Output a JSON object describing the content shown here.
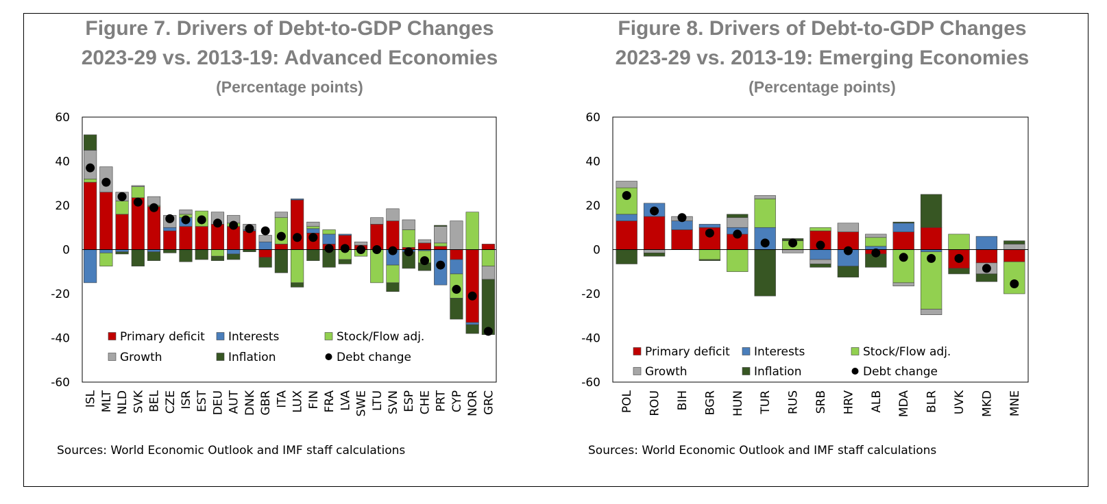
{
  "colors": {
    "primary_deficit": "#c00000",
    "interests": "#4a7ebb",
    "stock_flow": "#92d050",
    "growth": "#a6a6a6",
    "inflation": "#375623",
    "debt_change": "#000000",
    "title": "#7f7f7f"
  },
  "chart_data": [
    {
      "type": "bar",
      "subtype": "stacked",
      "title": "Figure 7. Drivers of Debt-to-GDP Changes",
      "title_line2": "2023-29 vs. 2013-19: Advanced Economies",
      "subtitle": "(Percentage points)",
      "source": "Sources: World Economic Outlook and IMF staff calculations",
      "ylim": [
        -60,
        60
      ],
      "yticks": [
        60,
        40,
        20,
        0,
        -20,
        -40,
        -60
      ],
      "legend_position": "lower-left",
      "categories": [
        "ISL",
        "MLT",
        "NLD",
        "SVK",
        "BEL",
        "CZE",
        "ISR",
        "EST",
        "DEU",
        "AUT",
        "DNK",
        "GBR",
        "ITA",
        "LUX",
        "FIN",
        "FRA",
        "LVA",
        "SWE",
        "LTU",
        "SVN",
        "ESP",
        "CHE",
        "PRT",
        "CYP",
        "NOR",
        "GRC"
      ],
      "series": [
        {
          "name": "Primary deficit",
          "key": "primary_deficit",
          "values": [
            30.5,
            26,
            16,
            23.5,
            19.5,
            8.5,
            10.5,
            10.5,
            11.5,
            10.5,
            8.5,
            -3.5,
            2.5,
            22.5,
            7.5,
            2.5,
            6.5,
            2,
            11.5,
            13,
            1,
            3,
            1.5,
            -4.5,
            -33,
            2.5
          ]
        },
        {
          "name": "Interests",
          "key": "interests",
          "values": [
            -15,
            -1.5,
            -1,
            0,
            -1,
            1.5,
            4,
            0,
            0,
            -2,
            0.5,
            3.5,
            0,
            0.5,
            2,
            4.5,
            0.5,
            0,
            0,
            -7,
            -1,
            -0.5,
            -16,
            -6.5,
            -1,
            0
          ]
        },
        {
          "name": "Stock/Flow adj.",
          "key": "stock_flow",
          "values": [
            1.5,
            -6,
            6,
            5,
            0.5,
            0,
            1.5,
            7,
            -3,
            1.5,
            0,
            0,
            12,
            -15,
            1,
            2,
            -4.5,
            -3,
            -15,
            -8,
            8,
            -5.5,
            1.5,
            -11,
            17,
            -7.5
          ]
        },
        {
          "name": "Growth",
          "key": "growth",
          "values": [
            13,
            11.5,
            4,
            0.5,
            4,
            5.5,
            2,
            0,
            5.5,
            3.5,
            2.5,
            3,
            2.5,
            0,
            2,
            0,
            0,
            1.5,
            3,
            5.5,
            4.5,
            1.5,
            7.5,
            13,
            0,
            -6
          ]
        },
        {
          "name": "Inflation",
          "key": "inflation",
          "values": [
            7,
            0,
            -1,
            -7.5,
            -4,
            -1.5,
            -5.5,
            -4.5,
            -2,
            -2.5,
            -1,
            -4.5,
            -10.5,
            -2,
            -5,
            -8,
            -2,
            0,
            0,
            -4,
            -7.5,
            -3.5,
            0.5,
            -9.5,
            -4,
            -25
          ]
        }
      ],
      "debt_change": {
        "name": "Debt change",
        "values": [
          37,
          30.5,
          24,
          21.5,
          19,
          14,
          13.5,
          13.5,
          12,
          11,
          9.5,
          8.5,
          6,
          5.5,
          5.5,
          0.5,
          0.5,
          0,
          0,
          -0.5,
          -1,
          -5,
          -7,
          -18,
          -21,
          -37
        ]
      }
    },
    {
      "type": "bar",
      "subtype": "stacked",
      "title": "Figure 8. Drivers of Debt-to-GDP Changes",
      "title_line2": "2023-29 vs. 2013-19: Emerging Economies",
      "subtitle": "(Percentage points)",
      "source": "Sources: World Economic Outlook and IMF staff calculations",
      "ylim": [
        -60,
        60
      ],
      "yticks": [
        60,
        40,
        20,
        0,
        -20,
        -40,
        -60
      ],
      "legend_position": "lower-left",
      "categories": [
        "POL",
        "ROU",
        "BIH",
        "BGR",
        "HUN",
        "TUR",
        "RUS",
        "SRB",
        "HRV",
        "ALB",
        "MDA",
        "BLR",
        "UVK",
        "MKD",
        "MNE"
      ],
      "series": [
        {
          "name": "Primary deficit",
          "key": "primary_deficit",
          "values": [
            13,
            15,
            9,
            10,
            7,
            0,
            0,
            8.5,
            8,
            -2,
            8,
            10,
            -8.5,
            -6,
            -5.5
          ]
        },
        {
          "name": "Interests",
          "key": "interests",
          "values": [
            3,
            6,
            4,
            1.5,
            3,
            10,
            0,
            -4.5,
            -7.5,
            1.5,
            4,
            -1,
            0,
            6,
            0
          ]
        },
        {
          "name": "Stock/Flow adj.",
          "key": "stock_flow",
          "values": [
            12,
            0,
            0,
            -4.5,
            -10,
            13,
            4,
            1.5,
            0,
            4,
            -15,
            -26,
            7,
            0,
            -14.5
          ]
        },
        {
          "name": "Growth",
          "key": "growth",
          "values": [
            3,
            -1.5,
            2,
            0,
            4.5,
            1.5,
            -1.5,
            -2,
            4,
            1.5,
            -1.5,
            -2.5,
            0,
            -5,
            2.5
          ]
        },
        {
          "name": "Inflation",
          "key": "inflation",
          "values": [
            -6.5,
            -1.5,
            0,
            -0.5,
            1.5,
            -21,
            1,
            -1.5,
            -5,
            -6,
            0.5,
            15,
            -2.5,
            -3.5,
            1.5
          ]
        }
      ],
      "debt_change": {
        "name": "Debt change",
        "values": [
          24.5,
          17.5,
          14.5,
          7.5,
          7,
          3,
          3,
          2,
          -0.5,
          -1.5,
          -3.5,
          -4,
          -4,
          -8.5,
          -15.5
        ]
      }
    }
  ]
}
